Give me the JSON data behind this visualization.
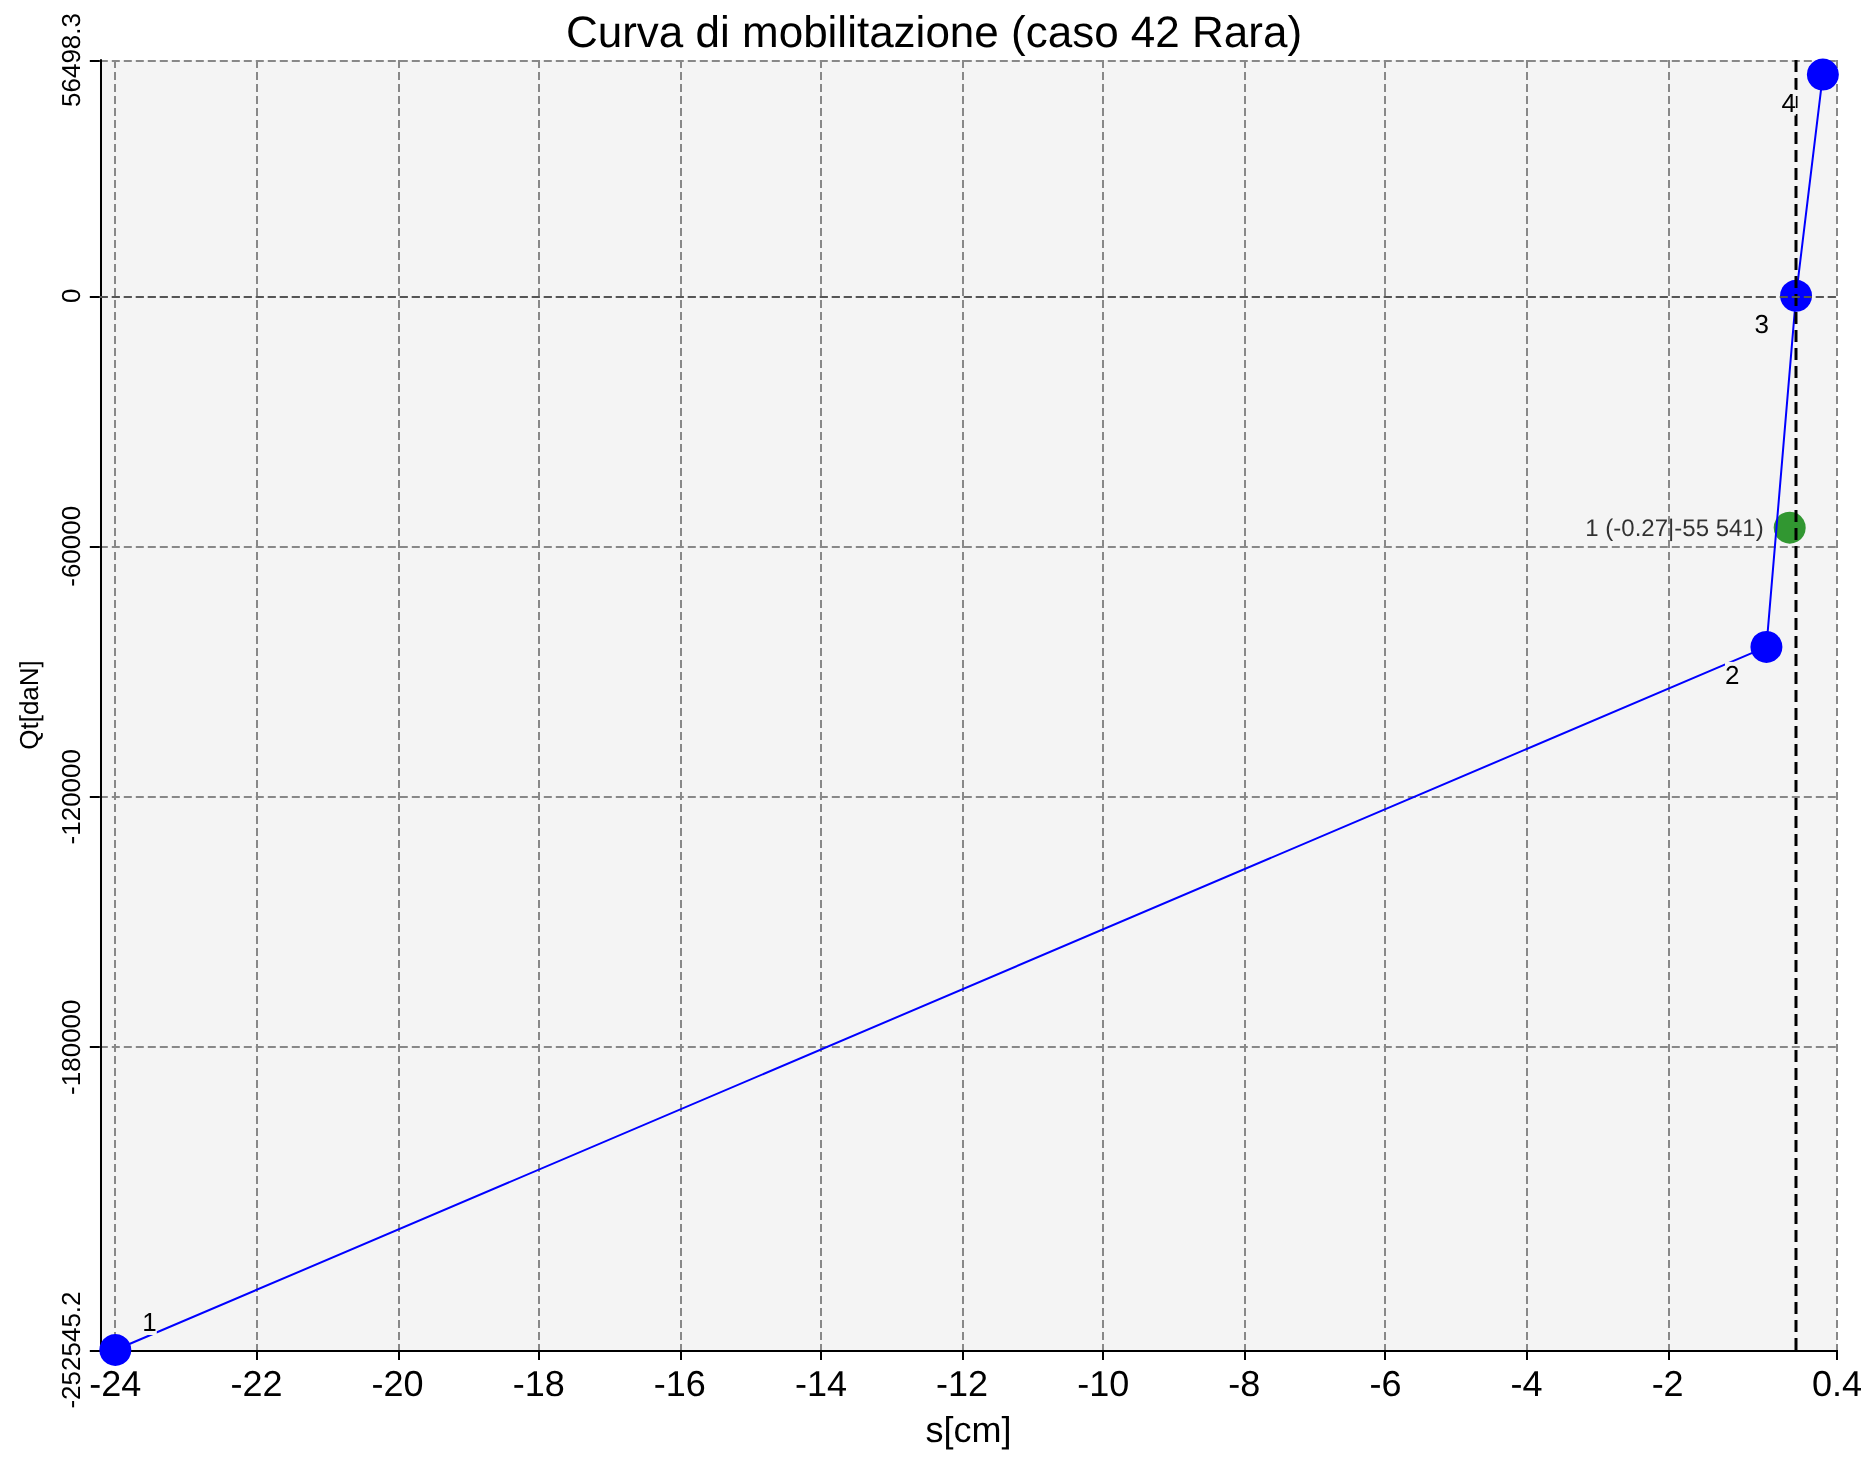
{
  "chart_data": {
    "type": "line",
    "title": "Curva di mobilitazione (caso 42 Rara)",
    "xlabel": "s[cm]",
    "ylabel": "Qt[daN]",
    "xlim": [
      -24.22,
      0.4
    ],
    "xticks": [
      -24,
      -22,
      -20,
      -18,
      -16,
      -14,
      -12,
      -10,
      -8,
      -6,
      -4,
      -2,
      0.4
    ],
    "ylim": [
      -252545.2,
      56498.3
    ],
    "yticks": [
      -252545.2,
      -180000,
      -120000,
      -60000,
      0,
      56498.3
    ],
    "grid": true,
    "marker": "circle",
    "line_style": "solid",
    "series": [
      {
        "color": "#0000ff",
        "x": [
          -24.0,
          -0.6,
          -0.18,
          0.2
        ],
        "values": [
          -252545.2,
          -84100,
          0,
          53000
        ]
      },
      {
        "type": "scatter",
        "color": "#008000",
        "x": [
          -0.27
        ],
        "values": [
          -55541
        ],
        "value_labels": [
          "1 (-0.27|-55 541)"
        ]
      }
    ],
    "annotations": [
      {
        "text": "1",
        "x": -24.0,
        "y": -252545.2
      },
      {
        "text": "2",
        "x": -0.6,
        "y": -84100
      },
      {
        "text": "3",
        "x": -0.18,
        "y": 0
      },
      {
        "text": "4",
        "x": 0.2,
        "y": 53000
      }
    ],
    "ref_lines": [
      {
        "axis": "x",
        "value": -0.2,
        "line_style": "dashed",
        "color": "#000000"
      },
      {
        "axis": "y",
        "value": 0,
        "line_style": "dashed",
        "color": "#555555"
      }
    ]
  }
}
